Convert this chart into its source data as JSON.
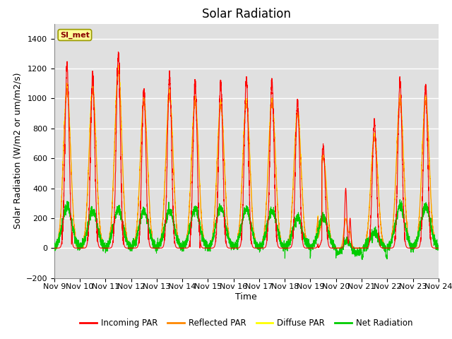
{
  "title": "Solar Radiation",
  "ylabel": "Solar Radiation (W/m2 or um/m2/s)",
  "xlabel": "Time",
  "ylim": [
    -200,
    1500
  ],
  "yticks": [
    -200,
    0,
    200,
    400,
    600,
    800,
    1000,
    1200,
    1400
  ],
  "xtick_labels": [
    "Nov 9",
    "Nov 10",
    "Nov 11",
    "Nov 12",
    "Nov 13",
    "Nov 14",
    "Nov 15",
    "Nov 16",
    "Nov 17",
    "Nov 18",
    "Nov 19",
    "Nov 20",
    "Nov 21",
    "Nov 22",
    "Nov 23",
    "Nov 24"
  ],
  "station_label": "SI_met",
  "bg_color": "#e0e0e0",
  "line_colors": {
    "incoming": "#ff0000",
    "reflected": "#ff8800",
    "diffuse": "#ffff00",
    "net": "#00cc00"
  },
  "legend_labels": [
    "Incoming PAR",
    "Reflected PAR",
    "Diffuse PAR",
    "Net Radiation"
  ],
  "title_fontsize": 12,
  "label_fontsize": 9,
  "tick_fontsize": 8,
  "n_days": 15
}
